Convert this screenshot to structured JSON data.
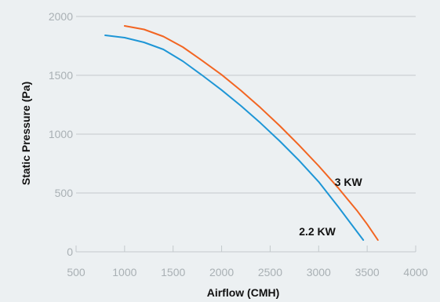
{
  "chart_data": {
    "type": "line",
    "title": "",
    "xlabel": "Airflow (CMH)",
    "ylabel": "Static Pressure (Pa)",
    "xlim": [
      500,
      4000
    ],
    "ylim": [
      0,
      2000
    ],
    "x_ticks": [
      "500",
      "1000",
      "1500",
      "2000",
      "2500",
      "3000",
      "3500",
      "4000"
    ],
    "y_ticks": [
      "0",
      "500",
      "1000",
      "1500",
      "2000"
    ],
    "grid": "horizontal",
    "legend": "none",
    "series": [
      {
        "name": "2.2 KW",
        "color": "#1e96d6",
        "x": [
          800,
          1000,
          1200,
          1400,
          1600,
          1800,
          2000,
          2200,
          2400,
          2600,
          2800,
          3000,
          3200,
          3350,
          3460
        ],
        "y": [
          1840,
          1820,
          1780,
          1720,
          1620,
          1500,
          1375,
          1240,
          1095,
          940,
          775,
          595,
          385,
          220,
          100
        ]
      },
      {
        "name": "3 KW",
        "color": "#f26522",
        "x": [
          1000,
          1200,
          1400,
          1600,
          1800,
          2000,
          2200,
          2400,
          2600,
          2800,
          3000,
          3200,
          3400,
          3500,
          3610
        ],
        "y": [
          1920,
          1890,
          1830,
          1740,
          1625,
          1505,
          1370,
          1225,
          1070,
          905,
          730,
          545,
          345,
          235,
          100
        ]
      }
    ]
  }
}
